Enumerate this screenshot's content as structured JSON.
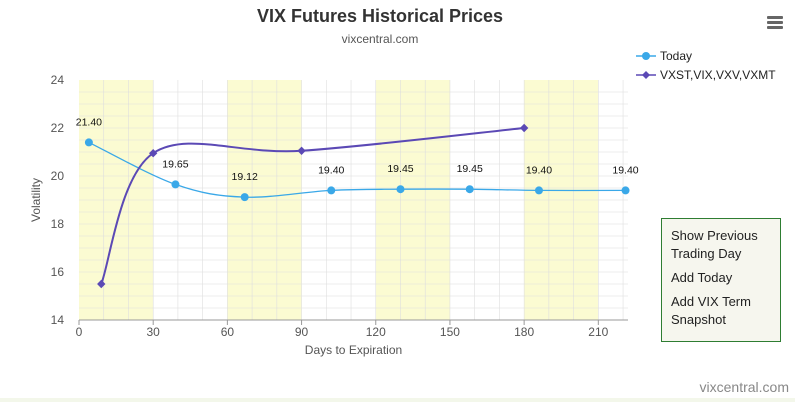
{
  "chart_data": {
    "type": "line",
    "title": "VIX Futures Historical Prices",
    "subtitle": "vixcentral.com",
    "xlabel": "Days to Expiration",
    "ylabel": "Volatility",
    "xlim": [
      0,
      222
    ],
    "ylim": [
      14,
      24
    ],
    "x_ticks": [
      0,
      30,
      60,
      90,
      120,
      150,
      180,
      210
    ],
    "y_ticks": [
      14,
      16,
      18,
      20,
      22,
      24
    ],
    "grid": true,
    "legend_position": "top-right",
    "series": [
      {
        "name": "Today",
        "color": "#3aa8e8",
        "marker": "circle",
        "x": [
          4,
          39,
          67,
          102,
          130,
          158,
          186,
          221
        ],
        "y": [
          21.4,
          19.65,
          19.12,
          19.4,
          19.45,
          19.45,
          19.4,
          19.4
        ],
        "labels": [
          "21.40",
          "19.65",
          "19.12",
          "19.40",
          "19.45",
          "19.45",
          "19.40",
          "19.40"
        ]
      },
      {
        "name": "VXST,VIX,VXV,VXMT",
        "color": "#5b49b5",
        "marker": "diamond",
        "x": [
          9,
          30,
          90,
          180
        ],
        "y": [
          15.5,
          20.95,
          21.05,
          22.0
        ]
      }
    ]
  },
  "menu": {
    "items": [
      "Show Previous Trading Day",
      "Add Today",
      "Add VIX Term Snapshot"
    ]
  },
  "credit": "vixcentral.com",
  "icons": {
    "menu": "hamburger-menu-icon"
  },
  "colors": {
    "band": "#fbfbd2",
    "grid": "#dedede",
    "menu_border": "#2e7d32"
  }
}
